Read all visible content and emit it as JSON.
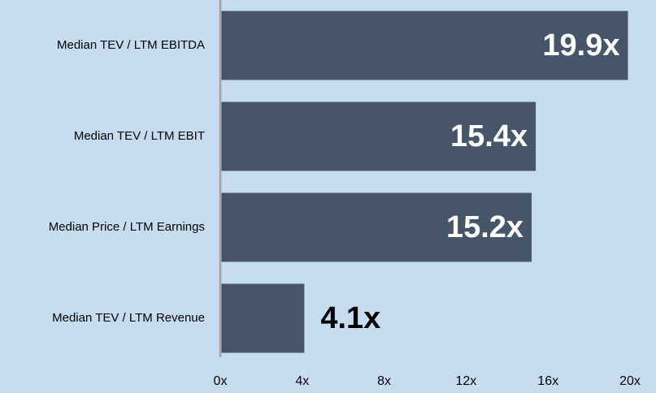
{
  "chart_data": {
    "type": "bar",
    "orientation": "horizontal",
    "categories": [
      "Median TEV / LTM EBITDA",
      "Median TEV / LTM EBIT",
      "Median Price / LTM Earnings",
      "Median TEV / LTM Revenue"
    ],
    "values": [
      19.9,
      15.4,
      15.2,
      4.1
    ],
    "value_labels": [
      "19.9x",
      "15.4x",
      "15.2x",
      "4.1x"
    ],
    "color": "#465569",
    "xlim": [
      0,
      20
    ],
    "xticks": [
      {
        "value": 0,
        "label": "0x"
      },
      {
        "value": 4,
        "label": "4x"
      },
      {
        "value": 8,
        "label": "8x"
      },
      {
        "value": 12,
        "label": "12x"
      },
      {
        "value": 16,
        "label": "16x"
      },
      {
        "value": 20,
        "label": "20x"
      }
    ],
    "grid": false
  }
}
